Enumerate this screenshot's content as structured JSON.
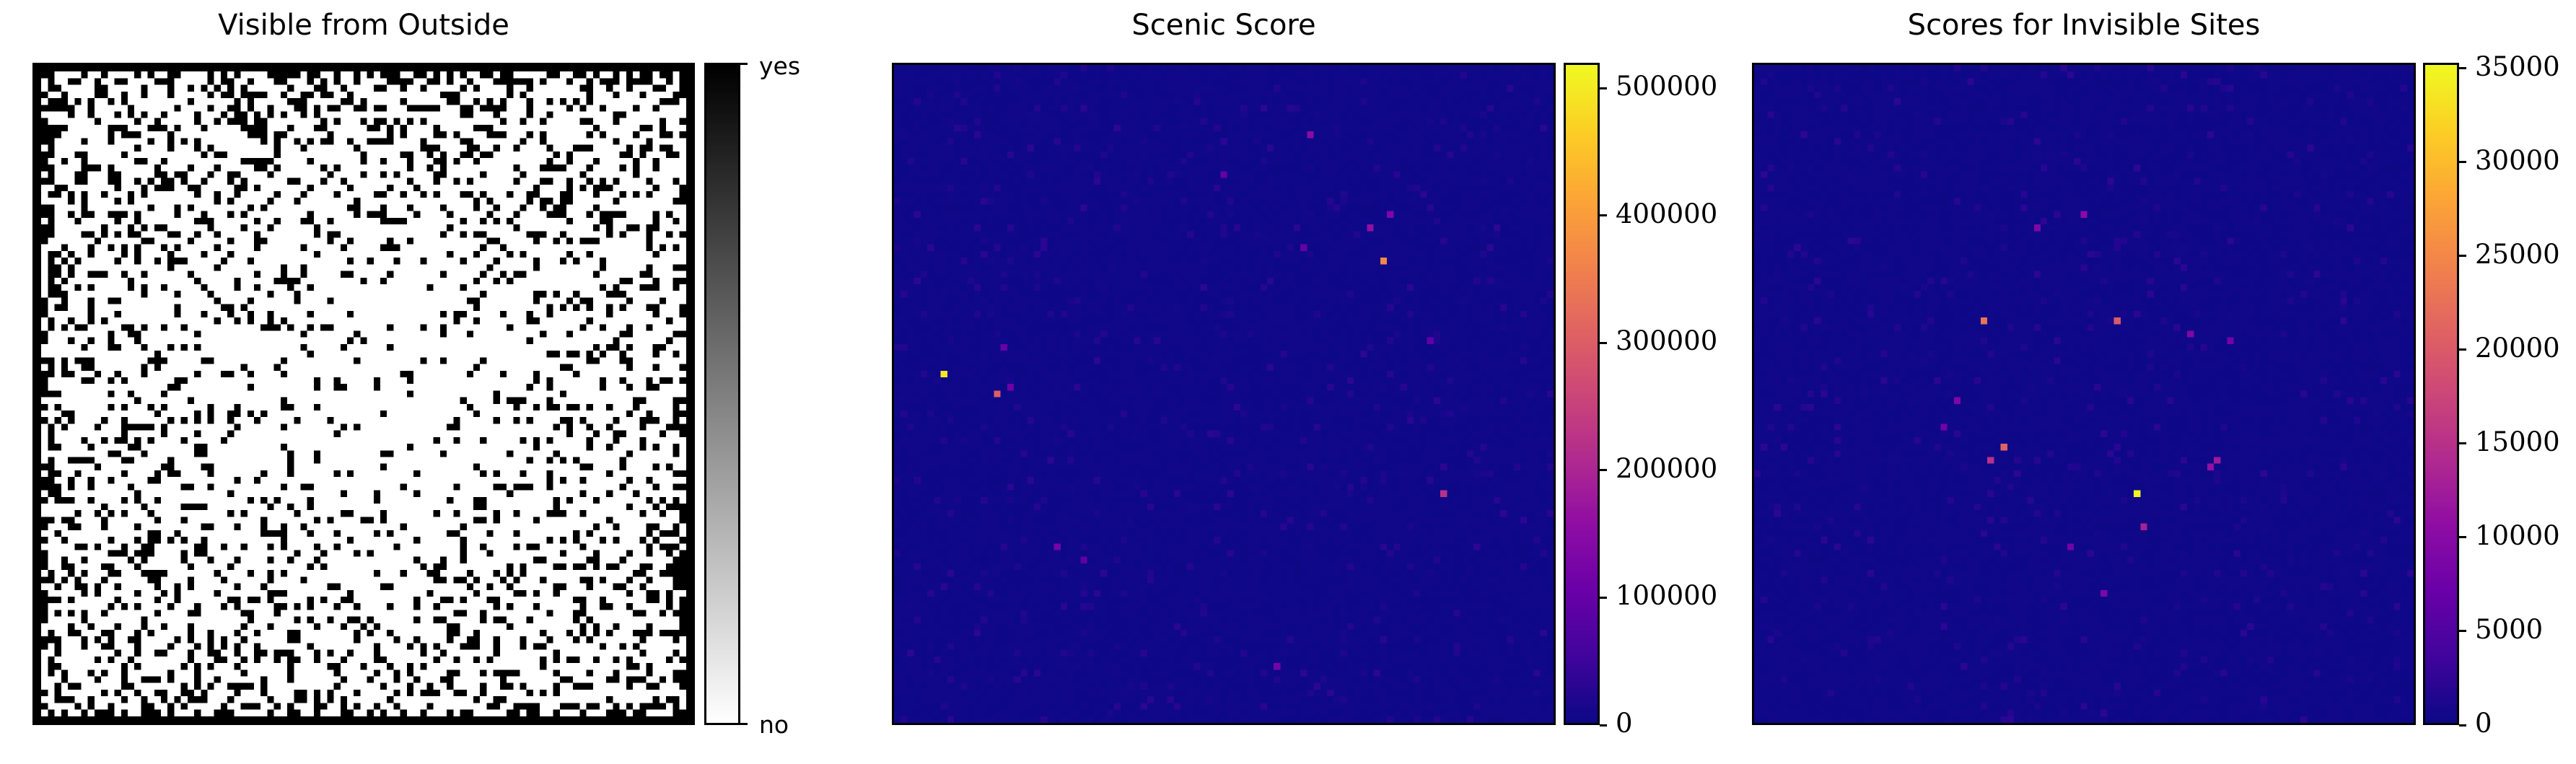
{
  "panels": [
    {
      "title": "Visible from Outside",
      "chart_data": {
        "type": "heatmap",
        "title": "Visible from Outside",
        "grid_size": [
          99,
          99
        ],
        "colormap": "gray_r",
        "colorbar_ticks": [
          {
            "value": 1,
            "label": "yes"
          },
          {
            "value": 0,
            "label": "no"
          }
        ],
        "vmin": 0,
        "vmax": 1,
        "description_values": "binary: 1 = visible from outside (black), 0 = not visible (white); border cells all visible",
        "seed": 7
      }
    },
    {
      "title": "Scenic Score",
      "chart_data": {
        "type": "heatmap",
        "title": "Scenic Score",
        "grid_size": [
          99,
          99
        ],
        "colormap": "plasma",
        "vmin": 0,
        "vmax": 520000,
        "colorbar_ticks": [
          {
            "value": 500000,
            "label": "500000"
          },
          {
            "value": 400000,
            "label": "400000"
          },
          {
            "value": 300000,
            "label": "300000"
          },
          {
            "value": 200000,
            "label": "200000"
          },
          {
            "value": 100000,
            "label": "100000"
          },
          {
            "value": 0,
            "label": "0"
          }
        ],
        "highlights": [
          {
            "row": 46,
            "col": 7,
            "value": 500000
          },
          {
            "row": 29,
            "col": 73,
            "value": 370000
          },
          {
            "row": 49,
            "col": 15,
            "value": 300000
          },
          {
            "row": 64,
            "col": 82,
            "value": 220000
          },
          {
            "row": 10,
            "col": 62,
            "value": 150000
          },
          {
            "row": 24,
            "col": 71,
            "value": 160000
          },
          {
            "row": 22,
            "col": 74,
            "value": 130000
          },
          {
            "row": 90,
            "col": 57,
            "value": 120000
          },
          {
            "row": 72,
            "col": 24,
            "value": 120000
          },
          {
            "row": 16,
            "col": 49,
            "value": 100000
          },
          {
            "row": 48,
            "col": 17,
            "value": 110000
          },
          {
            "row": 27,
            "col": 61,
            "value": 100000
          },
          {
            "row": 42,
            "col": 16,
            "value": 100000
          },
          {
            "row": 41,
            "col": 80,
            "value": 90000
          },
          {
            "row": 74,
            "col": 28,
            "value": 90000
          }
        ],
        "seed": 11
      }
    },
    {
      "title": "Scores for Invisible Sites",
      "chart_data": {
        "type": "heatmap",
        "title": "Scores for Invisible Sites",
        "grid_size": [
          99,
          99
        ],
        "colormap": "plasma",
        "vmin": 0,
        "vmax": 35300,
        "colorbar_ticks": [
          {
            "value": 35000,
            "label": "35000"
          },
          {
            "value": 30000,
            "label": "30000"
          },
          {
            "value": 25000,
            "label": "25000"
          },
          {
            "value": 20000,
            "label": "20000"
          },
          {
            "value": 15000,
            "label": "15000"
          },
          {
            "value": 10000,
            "label": "10000"
          },
          {
            "value": 5000,
            "label": "5000"
          },
          {
            "value": 0,
            "label": "0"
          }
        ],
        "highlights": [
          {
            "row": 64,
            "col": 57,
            "value": 35000
          },
          {
            "row": 38,
            "col": 34,
            "value": 23000
          },
          {
            "row": 38,
            "col": 54,
            "value": 20000
          },
          {
            "row": 57,
            "col": 37,
            "value": 21000
          },
          {
            "row": 59,
            "col": 35,
            "value": 15000
          },
          {
            "row": 69,
            "col": 58,
            "value": 13000
          },
          {
            "row": 59,
            "col": 69,
            "value": 12000
          },
          {
            "row": 60,
            "col": 68,
            "value": 11000
          },
          {
            "row": 22,
            "col": 49,
            "value": 10000
          },
          {
            "row": 24,
            "col": 42,
            "value": 9000
          },
          {
            "row": 50,
            "col": 30,
            "value": 9000
          },
          {
            "row": 79,
            "col": 52,
            "value": 9000
          },
          {
            "row": 72,
            "col": 47,
            "value": 8000
          },
          {
            "row": 54,
            "col": 28,
            "value": 8000
          },
          {
            "row": 40,
            "col": 65,
            "value": 9000
          },
          {
            "row": 41,
            "col": 71,
            "value": 8000
          }
        ],
        "seed": 23
      }
    }
  ]
}
